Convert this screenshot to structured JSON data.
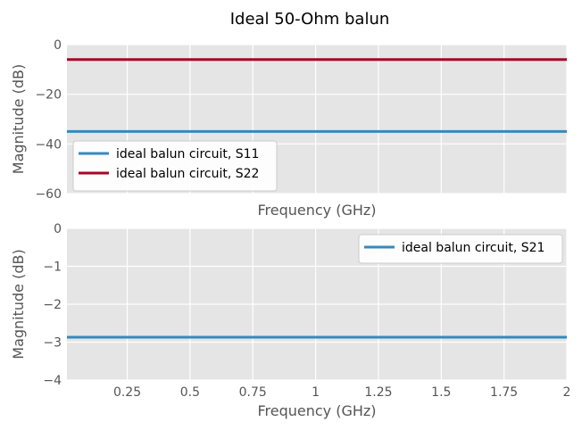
{
  "title": "Ideal 50-Ohm balun",
  "chart_data": [
    {
      "type": "line",
      "xlabel": "Frequency (GHz)",
      "ylabel": "Magnitude (dB)",
      "xlim": [
        0.01,
        2.0
      ],
      "ylim": [
        -60,
        0
      ],
      "yticks": [
        0,
        -20,
        -40,
        -60
      ],
      "yticklabels": [
        "0",
        "−20",
        "−40",
        "−60"
      ],
      "xticks": [
        0.25,
        0.5,
        0.75,
        1.0,
        1.25,
        1.5,
        1.75,
        2.0
      ],
      "xticklabels": [],
      "grid": true,
      "legend_position": "lower-left",
      "series": [
        {
          "name": "ideal balun circuit, S11",
          "color": "#348abd",
          "x": [
            0.01,
            2.0
          ],
          "y": [
            -35,
            -35
          ]
        },
        {
          "name": "ideal balun circuit, S22",
          "color": "#a60628",
          "x": [
            0.01,
            2.0
          ],
          "y": [
            -6,
            -6
          ]
        }
      ]
    },
    {
      "type": "line",
      "xlabel": "Frequency (GHz)",
      "ylabel": "Magnitude (dB)",
      "xlim": [
        0.01,
        2.0
      ],
      "ylim": [
        -4,
        0
      ],
      "yticks": [
        0,
        -1,
        -2,
        -3,
        -4
      ],
      "yticklabels": [
        "0",
        "−1",
        "−2",
        "−3",
        "−4"
      ],
      "xticks": [
        0.25,
        0.5,
        0.75,
        1.0,
        1.25,
        1.5,
        1.75,
        2.0
      ],
      "xticklabels": [
        "0.25",
        "0.5",
        "0.75",
        "1",
        "1.25",
        "1.5",
        "1.75",
        "2"
      ],
      "grid": true,
      "legend_position": "top-right",
      "series": [
        {
          "name": "ideal balun circuit, S21",
          "color": "#348abd",
          "x": [
            0.01,
            2.0
          ],
          "y": [
            -2.87,
            -2.87
          ]
        }
      ]
    }
  ]
}
